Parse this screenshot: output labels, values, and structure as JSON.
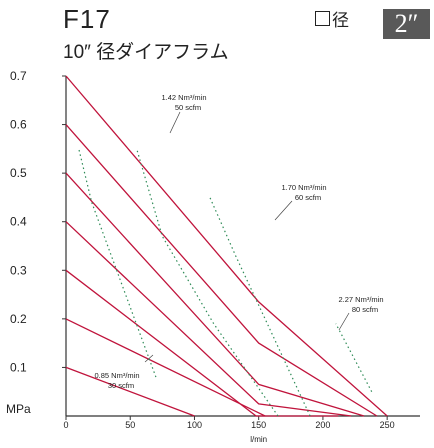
{
  "header": {
    "model": "F17",
    "subtitle": "10″ 径ダイアフラム",
    "port_label": "径",
    "port_size": "2″"
  },
  "colors": {
    "curve": "#c0143c",
    "efficiency": "#2e8b57",
    "axis": "#333333"
  },
  "chart_data": {
    "type": "line",
    "ylabel": "MPa",
    "xlabel": "l/min",
    "xlim": [
      0,
      280
    ],
    "ylim": [
      0,
      0.7
    ],
    "x_ticks": [
      0,
      50,
      100,
      150,
      200,
      250
    ],
    "y_ticks": [
      0.1,
      0.2,
      0.3,
      0.4,
      0.5,
      0.6,
      0.7
    ],
    "series": [
      {
        "values": [
          [
            0,
            0.7
          ],
          [
            150,
            0.235
          ],
          [
            250,
            0
          ]
        ]
      },
      {
        "values": [
          [
            0,
            0.6
          ],
          [
            150,
            0.15
          ],
          [
            242,
            0
          ]
        ]
      },
      {
        "values": [
          [
            0,
            0.5
          ],
          [
            150,
            0.065
          ],
          [
            232,
            0
          ]
        ]
      },
      {
        "values": [
          [
            0,
            0.4
          ],
          [
            150,
            0.025
          ],
          [
            222,
            0
          ]
        ]
      },
      {
        "values": [
          [
            0,
            0.3
          ],
          [
            148,
            0
          ],
          [
            212,
            0
          ]
        ]
      },
      {
        "values": [
          [
            0,
            0.2
          ],
          [
            155,
            0
          ]
        ]
      },
      {
        "values": [
          [
            0,
            0.1
          ],
          [
            100,
            0
          ]
        ]
      }
    ],
    "air_lines": [
      {
        "label": "0.85 Nm³/min",
        "scfm": "30 scfm",
        "values": [
          [
            70,
            0.08
          ],
          [
            20,
            0.44
          ],
          [
            10,
            0.55
          ]
        ]
      },
      {
        "label": "1.42 Nm³/min",
        "scfm": "50 scfm",
        "values": [
          [
            165,
            0.0
          ],
          [
            115,
            0.19
          ],
          [
            75,
            0.37
          ],
          [
            55,
            0.55
          ]
        ]
      },
      {
        "label": "1.70 Nm³/min",
        "scfm": "60 scfm",
        "values": [
          [
            190,
            0.0
          ],
          [
            155,
            0.2
          ],
          [
            132,
            0.33
          ],
          [
            112,
            0.45
          ]
        ]
      },
      {
        "label": "2.27 Nm³/min",
        "scfm": "80 scfm",
        "values": [
          [
            238,
            0.05
          ],
          [
            210,
            0.19
          ]
        ]
      }
    ]
  }
}
